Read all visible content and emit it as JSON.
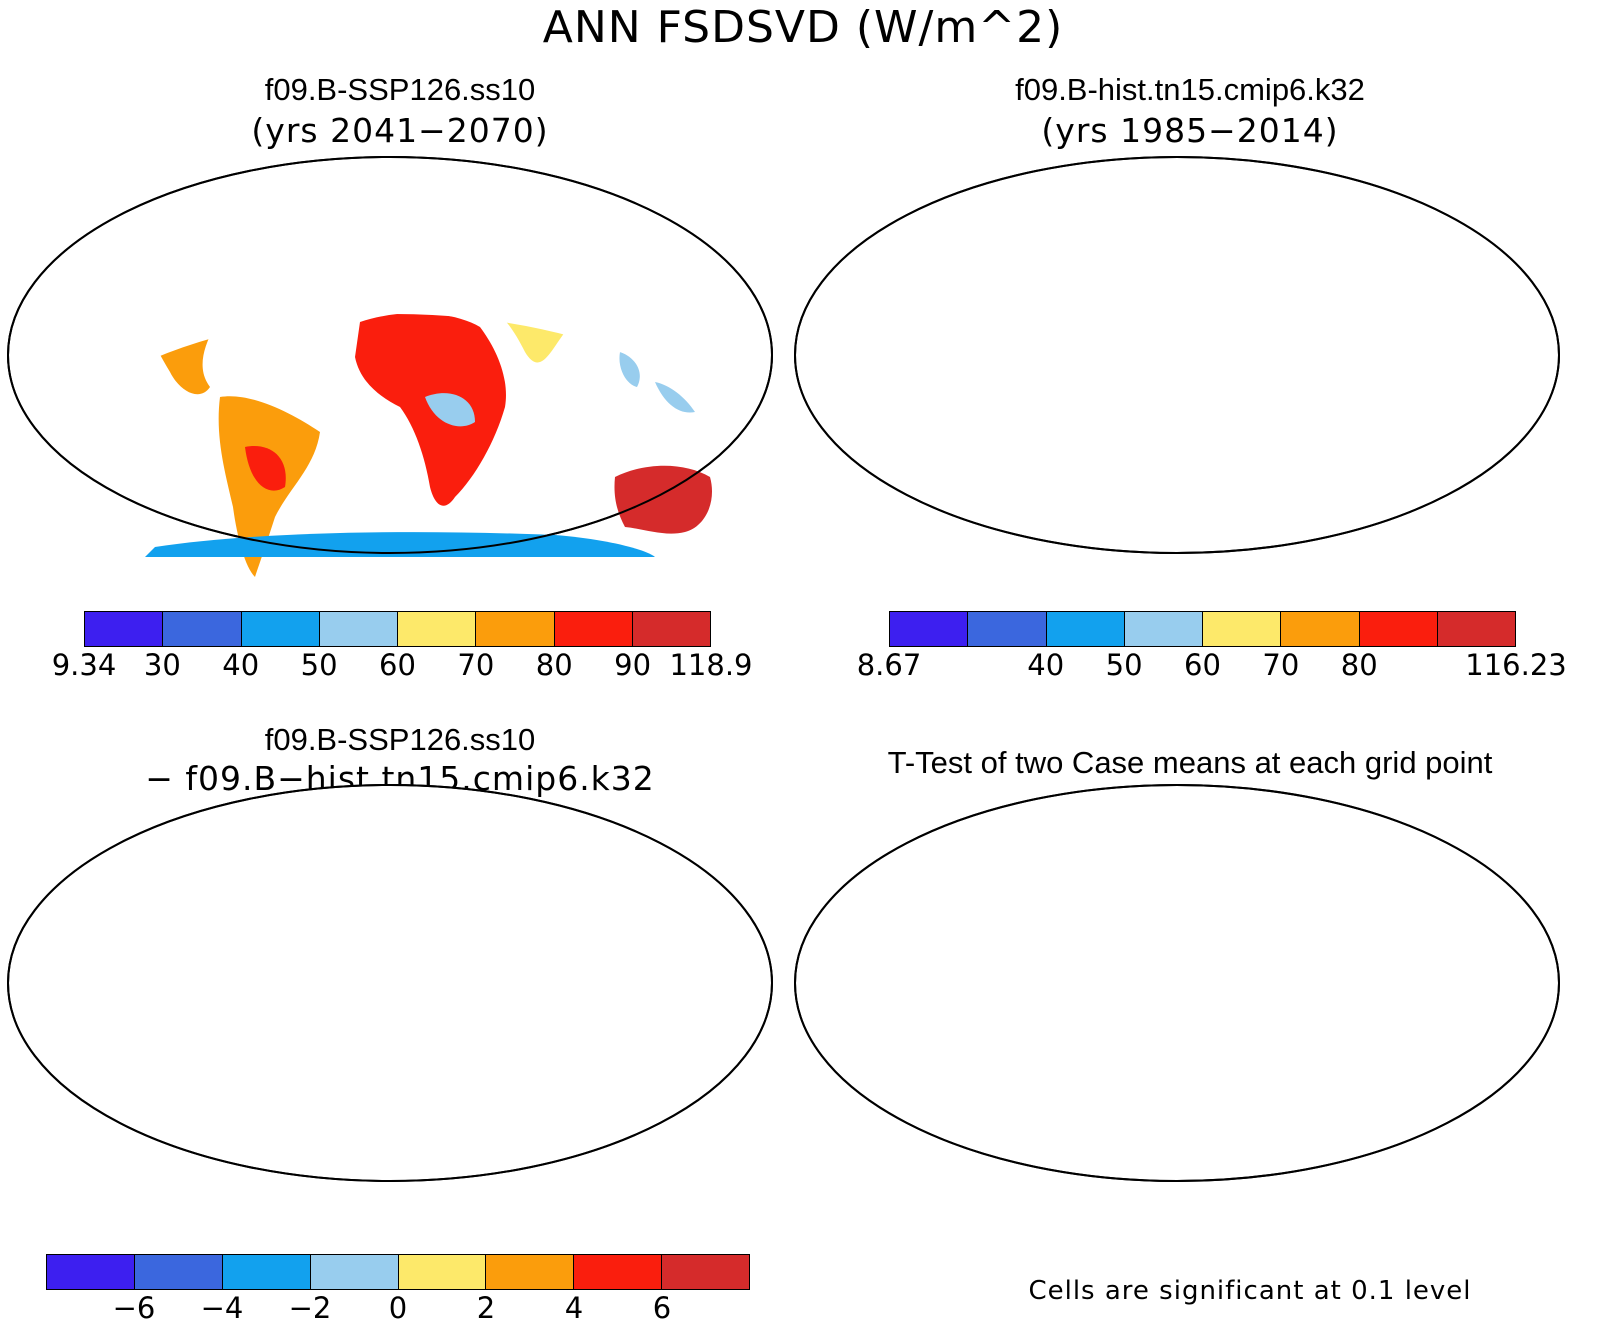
{
  "title": "ANN FSDSVD (W/m^2)",
  "panels": [
    {
      "title": "f09.B-SSP126.ss10",
      "subtitle": "(yrs 2041−2070)"
    },
    {
      "title": "f09.B-hist.tn15.cmip6.k32",
      "subtitle": "(yrs 1985−2014)"
    },
    {
      "title": "f09.B-SSP126.ss10",
      "subtitle": "− f09.B−hist.tn15.cmip6.k32"
    },
    {
      "title": "T-Test of two Case means at each grid point",
      "footnote": "Cells are significant at 0.1 level"
    }
  ],
  "colorbars": [
    {
      "colors": [
        "#3d1ff0",
        "#3b67de",
        "#12a1ee",
        "#98cdee",
        "#fde96a",
        "#fb9d0c",
        "#fa1e0d",
        "#d52b2b"
      ],
      "labels": [
        "9.34",
        "30",
        "40",
        "50",
        "60",
        "70",
        "80",
        "90",
        "118.9"
      ]
    },
    {
      "colors": [
        "#3d1ff0",
        "#3b67de",
        "#12a1ee",
        "#98cdee",
        "#fde96a",
        "#fb9d0c",
        "#fa1e0d",
        "#d52b2b"
      ],
      "labels": [
        "8.67",
        "",
        "40",
        "50",
        "60",
        "70",
        "80",
        "",
        "116.23"
      ]
    },
    {
      "colors": [
        "#3d1ff0",
        "#3b67de",
        "#12a1ee",
        "#98cdee",
        "#fde96a",
        "#fb9d0c",
        "#fa1e0d",
        "#d52b2b"
      ],
      "labels": [
        "−6",
        "−4",
        "−2",
        "0",
        "2",
        "4",
        "6"
      ]
    }
  ],
  "colors": {
    "significant": "#fa1e0d"
  }
}
